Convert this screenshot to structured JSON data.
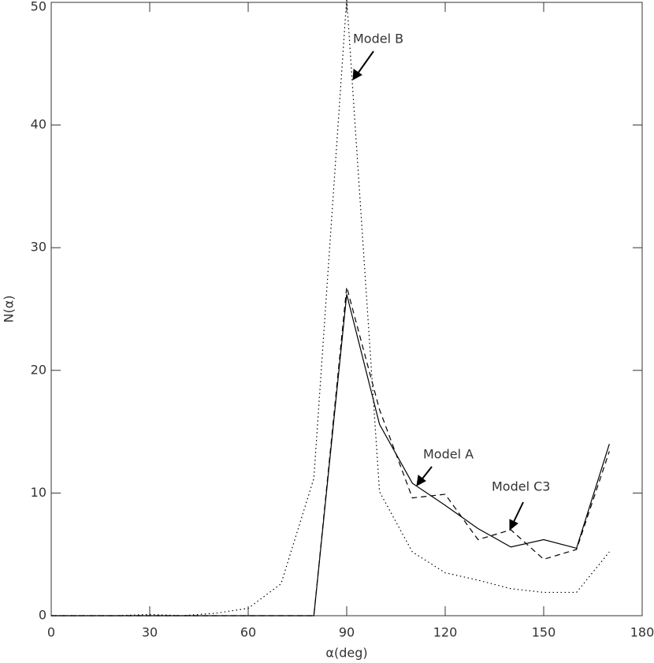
{
  "chart_data": {
    "type": "line",
    "xlabel": "α(deg)",
    "ylabel": "N(α)",
    "x": [
      0,
      10,
      20,
      30,
      40,
      50,
      60,
      70,
      80,
      90,
      100,
      110,
      120,
      130,
      140,
      150,
      160,
      170
    ],
    "series": [
      {
        "name": "Model A",
        "color": "#000",
        "dash": "solid",
        "values": [
          0,
          0,
          0,
          0,
          0,
          0,
          0,
          0,
          0,
          26.2,
          15.6,
          10.8,
          9.0,
          7.1,
          5.6,
          6.2,
          5.5,
          14.0
        ]
      },
      {
        "name": "Model C3",
        "color": "#000",
        "dash": "dashed",
        "values": [
          0,
          0,
          0,
          0,
          0,
          0,
          0,
          0,
          0,
          26.8,
          16.8,
          9.6,
          9.9,
          6.2,
          7.0,
          4.6,
          5.4,
          13.4
        ]
      },
      {
        "name": "Model B",
        "color": "#000",
        "dash": "dotted",
        "values": [
          0,
          0,
          0,
          0.1,
          0,
          0.2,
          0.6,
          2.6,
          11.2,
          50.3,
          10.1,
          5.2,
          3.5,
          2.9,
          2.2,
          1.9,
          1.9,
          5.2
        ]
      }
    ],
    "xlim": [
      0,
      180
    ],
    "ylim": [
      0,
      50
    ],
    "xticks": [
      0,
      30,
      60,
      90,
      120,
      150,
      180
    ],
    "yticks": [
      0,
      10,
      20,
      30,
      40,
      50
    ]
  }
}
